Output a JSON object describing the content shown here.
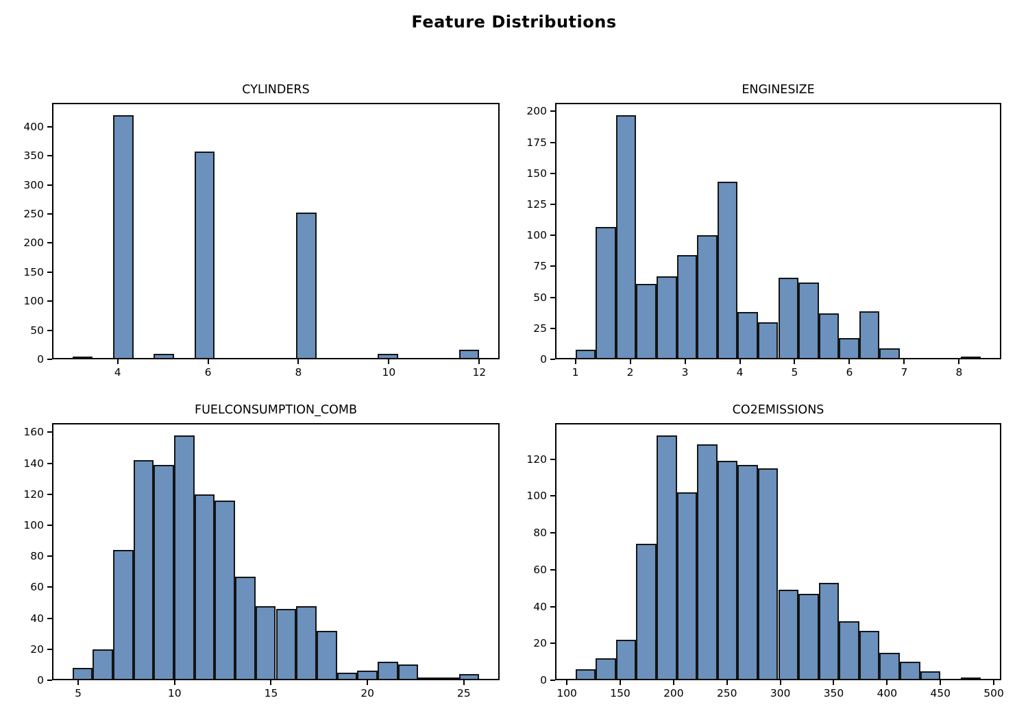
{
  "figure_title": "Feature Distributions",
  "colors": {
    "background": "#ffffff",
    "bar_fill": "#6b91bc",
    "bar_edge": "#141414",
    "axis": "#000000",
    "text": "#000000"
  },
  "chart_data": [
    {
      "type": "bar",
      "subtype": "histogram",
      "title": "CYLINDERS",
      "xlabel": "",
      "ylabel": "",
      "grid": false,
      "legend": null,
      "bins": {
        "start": 3.0,
        "width": 0.45,
        "counts": [
          4,
          0,
          420,
          0,
          9,
          0,
          357,
          0,
          0,
          0,
          0,
          252,
          0,
          0,
          0,
          9,
          0,
          0,
          0,
          16
        ]
      },
      "xlim": [
        2.55,
        12.45
      ],
      "ylim": [
        0,
        441
      ],
      "xticks": [
        4,
        6,
        8,
        10,
        12
      ],
      "yticks": [
        0,
        50,
        100,
        150,
        200,
        250,
        300,
        350,
        400
      ]
    },
    {
      "type": "bar",
      "subtype": "histogram",
      "title": "ENGINESIZE",
      "xlabel": "",
      "ylabel": "",
      "grid": false,
      "legend": null,
      "bins": {
        "start": 1.0,
        "width": 0.37,
        "counts": [
          8,
          107,
          197,
          61,
          67,
          84,
          100,
          143,
          38,
          30,
          66,
          62,
          37,
          17,
          39,
          9,
          0,
          0,
          0,
          2
        ]
      },
      "xlim": [
        0.63,
        8.77
      ],
      "ylim": [
        0,
        206.85
      ],
      "xticks": [
        1,
        2,
        3,
        4,
        5,
        6,
        7,
        8
      ],
      "yticks": [
        0,
        25,
        50,
        75,
        100,
        125,
        150,
        175,
        200
      ]
    },
    {
      "type": "bar",
      "subtype": "histogram",
      "title": "FUELCONSUMPTION_COMB",
      "xlabel": "",
      "ylabel": "",
      "grid": false,
      "legend": null,
      "bins": {
        "start": 4.7,
        "width": 1.055,
        "counts": [
          8,
          20,
          84,
          142,
          139,
          158,
          120,
          116,
          67,
          48,
          46,
          48,
          32,
          5,
          6,
          12,
          10,
          1,
          1,
          4
        ]
      },
      "xlim": [
        3.645,
        26.855
      ],
      "ylim": [
        0,
        165.9
      ],
      "xticks": [
        5,
        10,
        15,
        20,
        25
      ],
      "yticks": [
        0,
        20,
        40,
        60,
        80,
        100,
        120,
        140,
        160
      ]
    },
    {
      "type": "bar",
      "subtype": "histogram",
      "title": "CO2EMISSIONS",
      "xlabel": "",
      "ylabel": "",
      "grid": false,
      "legend": null,
      "bins": {
        "start": 108,
        "width": 19,
        "counts": [
          6,
          12,
          22,
          74,
          133,
          102,
          128,
          119,
          117,
          115,
          49,
          47,
          53,
          32,
          27,
          15,
          10,
          5,
          0,
          1
        ]
      },
      "xlim": [
        89,
        507
      ],
      "ylim": [
        0,
        139.65
      ],
      "xticks": [
        100,
        150,
        200,
        250,
        300,
        350,
        400,
        450,
        500
      ],
      "yticks": [
        0,
        20,
        40,
        60,
        80,
        100,
        120
      ]
    }
  ]
}
